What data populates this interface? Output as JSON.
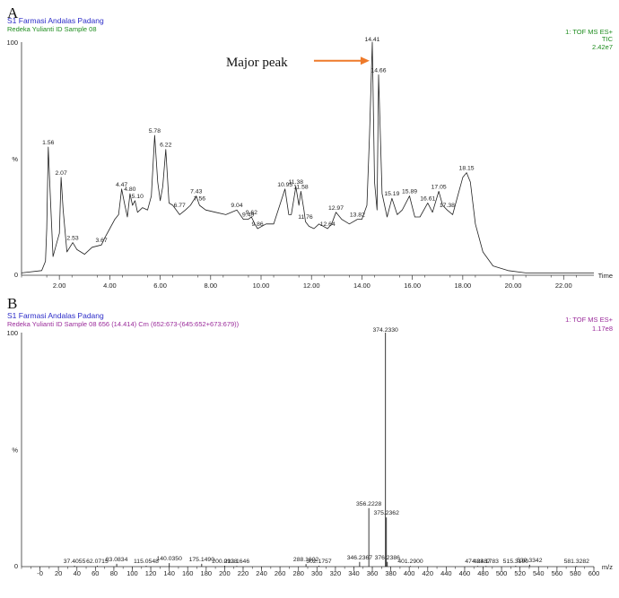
{
  "chart_data": [
    {
      "panel_label": "A",
      "type": "line",
      "header": {
        "line1": "S1 Farmasi Andalas Padang",
        "line2": "Redeka Yulianti ID Sample 08",
        "right1": "1: TOF MS ES+",
        "right2": "TIC",
        "right3": "2.42e7"
      },
      "y_axis": {
        "top_label": "100",
        "mid_label": "%",
        "bottom_label": "0",
        "ylim": [
          0,
          100
        ]
      },
      "x_axis": {
        "label": "Time",
        "xlim": [
          0.5,
          23.2
        ],
        "ticks": [
          "2.00",
          "4.00",
          "6.00",
          "8.00",
          "10.00",
          "12.00",
          "14.00",
          "16.00",
          "18.00",
          "20.00",
          "22.00"
        ]
      },
      "annotation": "Major peak",
      "colors": {
        "header1": "#2c2cc8",
        "header2": "#1e8c1e",
        "right": "#1e8c1e",
        "arrow": "#ee7a2a",
        "trace": "#222222"
      },
      "series": [
        {
          "x": [
            0.5,
            1.3,
            1.45,
            1.5,
            1.56,
            1.65,
            1.75,
            1.85,
            2.0,
            2.07,
            2.15,
            2.3,
            2.53,
            2.7,
            3.0,
            3.3,
            3.67,
            3.8,
            4.0,
            4.2,
            4.35,
            4.47,
            4.6,
            4.7,
            4.8,
            4.9,
            5.0,
            5.1,
            5.3,
            5.5,
            5.65,
            5.78,
            5.9,
            6.0,
            6.1,
            6.22,
            6.35,
            6.5,
            6.77,
            7.0,
            7.2,
            7.43,
            7.56,
            7.8,
            8.2,
            8.6,
            9.04,
            9.3,
            9.49,
            9.62,
            9.75,
            9.86,
            10.2,
            10.5,
            10.95,
            11.1,
            11.2,
            11.38,
            11.5,
            11.58,
            11.7,
            11.76,
            11.9,
            12.1,
            12.3,
            12.64,
            12.8,
            12.97,
            13.2,
            13.5,
            13.82,
            14.0,
            14.2,
            14.3,
            14.41,
            14.5,
            14.6,
            14.66,
            14.8,
            15.0,
            15.19,
            15.4,
            15.6,
            15.89,
            16.1,
            16.3,
            16.61,
            16.8,
            17.05,
            17.2,
            17.38,
            17.6,
            17.8,
            18.0,
            18.15,
            18.3,
            18.5,
            18.8,
            19.2,
            19.8,
            20.5,
            21.5,
            22.5,
            23.2
          ],
          "y": [
            1,
            2,
            6,
            20,
            55,
            32,
            8,
            12,
            18,
            42,
            28,
            10,
            14,
            11,
            9,
            12,
            13,
            16,
            20,
            24,
            26,
            37,
            30,
            25,
            35,
            30,
            32,
            27,
            29,
            28,
            34,
            60,
            40,
            32,
            38,
            54,
            31,
            30,
            26,
            28,
            30,
            34,
            30,
            28,
            27,
            26,
            28,
            24,
            24,
            25,
            22,
            20,
            22,
            22,
            37,
            26,
            26,
            38,
            30,
            36,
            28,
            23,
            21,
            20,
            22,
            20,
            22,
            27,
            24,
            22,
            24,
            24,
            30,
            60,
            100,
            40,
            28,
            86,
            35,
            25,
            33,
            26,
            28,
            34,
            25,
            25,
            31,
            27,
            36,
            30,
            28,
            26,
            34,
            42,
            44,
            40,
            22,
            10,
            4,
            2,
            1,
            1,
            1,
            1
          ]
        }
      ],
      "peak_labels": [
        {
          "x": 1.56,
          "y": 55,
          "label": "1.56"
        },
        {
          "x": 2.07,
          "y": 42,
          "label": "2.07"
        },
        {
          "x": 2.53,
          "y": 14,
          "label": "2.53"
        },
        {
          "x": 3.67,
          "y": 13,
          "label": "3.67"
        },
        {
          "x": 4.47,
          "y": 37,
          "label": "4.47"
        },
        {
          "x": 4.8,
          "y": 35,
          "label": "4.80"
        },
        {
          "x": 5.1,
          "y": 32,
          "label": "5.10"
        },
        {
          "x": 5.78,
          "y": 60,
          "label": "5.78"
        },
        {
          "x": 6.22,
          "y": 54,
          "label": "6.22"
        },
        {
          "x": 6.77,
          "y": 28,
          "label": "6.77"
        },
        {
          "x": 7.43,
          "y": 34,
          "label": "7.43"
        },
        {
          "x": 7.56,
          "y": 31,
          "label": "7.56"
        },
        {
          "x": 9.04,
          "y": 28,
          "label": "9.04"
        },
        {
          "x": 9.49,
          "y": 24,
          "label": "9.49"
        },
        {
          "x": 9.62,
          "y": 25,
          "label": "9.62"
        },
        {
          "x": 9.86,
          "y": 20,
          "label": "9.86"
        },
        {
          "x": 10.95,
          "y": 37,
          "label": "10.95"
        },
        {
          "x": 11.38,
          "y": 38,
          "label": "11.38"
        },
        {
          "x": 11.58,
          "y": 36,
          "label": "11.58"
        },
        {
          "x": 11.76,
          "y": 23,
          "label": "11.76"
        },
        {
          "x": 12.64,
          "y": 20,
          "label": "12.64"
        },
        {
          "x": 12.97,
          "y": 27,
          "label": "12.97"
        },
        {
          "x": 13.82,
          "y": 24,
          "label": "13.82"
        },
        {
          "x": 14.41,
          "y": 100,
          "label": "14.41"
        },
        {
          "x": 14.66,
          "y": 86,
          "label": "14.66"
        },
        {
          "x": 15.19,
          "y": 33,
          "label": "15.19"
        },
        {
          "x": 15.89,
          "y": 34,
          "label": "15.89"
        },
        {
          "x": 16.61,
          "y": 31,
          "label": "16.61"
        },
        {
          "x": 17.05,
          "y": 36,
          "label": "17.05"
        },
        {
          "x": 17.38,
          "y": 28,
          "label": "17.38"
        },
        {
          "x": 18.15,
          "y": 44,
          "label": "18.15"
        }
      ]
    },
    {
      "panel_label": "B",
      "type": "bar",
      "header": {
        "line1": "S1 Farmasi Andalas Padang",
        "line2": "Redeka Yulianti ID Sample 08 656 (14.414) Cm (652:673-(645:652+673:679))",
        "right1": "1: TOF MS ES+",
        "right2": "1.17e8"
      },
      "y_axis": {
        "top_label": "100",
        "mid_label": "%",
        "bottom_label": "0",
        "ylim": [
          0,
          100
        ]
      },
      "x_axis": {
        "label": "m/z",
        "xlim": [
          -20,
          600
        ],
        "ticks": [
          "-0",
          "20",
          "40",
          "60",
          "80",
          "100",
          "120",
          "140",
          "160",
          "180",
          "200",
          "220",
          "240",
          "260",
          "280",
          "300",
          "320",
          "340",
          "360",
          "380",
          "400",
          "420",
          "440",
          "460",
          "480",
          "500",
          "520",
          "540",
          "560",
          "580",
          "600"
        ]
      },
      "colors": {
        "header1": "#2c2cc8",
        "header2": "#9a2a9a",
        "right": "#9a2a9a",
        "trace": "#222222"
      },
      "series": [
        {
          "x": [
            37.4055,
            62.0715,
            83.0834,
            115.0548,
            140.035,
            175.149,
            200.0928,
            213.1646,
            288.1602,
            302.1757,
            346.2367,
            356.2228,
            374.233,
            375.2362,
            376.2386,
            401.29,
            474.2487,
            483.1783,
            515.319,
            530.3342,
            581.3282
          ],
          "y": [
            0.4,
            0.4,
            1.2,
            0.4,
            1.5,
            1.2,
            0.4,
            0.3,
            1.1,
            0.4,
            2.0,
            25,
            100,
            21,
            2.0,
            0.3,
            0.3,
            0.3,
            0.4,
            0.8,
            0.3
          ]
        }
      ],
      "peak_labels": [
        {
          "x": 37.4055,
          "y": 0.4,
          "label": "37.4055"
        },
        {
          "x": 62.0715,
          "y": 0.4,
          "label": "62.0715"
        },
        {
          "x": 83.0834,
          "y": 1.2,
          "label": "83.0834"
        },
        {
          "x": 115.0548,
          "y": 0.4,
          "label": "115.0548"
        },
        {
          "x": 140.035,
          "y": 1.5,
          "label": "140.0350"
        },
        {
          "x": 175.149,
          "y": 1.2,
          "label": "175.1490"
        },
        {
          "x": 200.0928,
          "y": 0.4,
          "label": "200.0928"
        },
        {
          "x": 213.1646,
          "y": 0.3,
          "label": "213.1646"
        },
        {
          "x": 288.1602,
          "y": 1.1,
          "label": "288.1602"
        },
        {
          "x": 302.1757,
          "y": 0.4,
          "label": "302.1757"
        },
        {
          "x": 346.2367,
          "y": 2.0,
          "label": "346.2367"
        },
        {
          "x": 356.2228,
          "y": 25,
          "label": "356.2228"
        },
        {
          "x": 374.233,
          "y": 100,
          "label": "374.2330"
        },
        {
          "x": 375.2362,
          "y": 21,
          "label": "375.2362"
        },
        {
          "x": 376.2386,
          "y": 2.0,
          "label": "376.2386"
        },
        {
          "x": 401.29,
          "y": 0.3,
          "label": "401.2900"
        },
        {
          "x": 474.2487,
          "y": 0.3,
          "label": "474.2487"
        },
        {
          "x": 483.1783,
          "y": 0.3,
          "label": "483.1783"
        },
        {
          "x": 515.319,
          "y": 0.4,
          "label": "515.3190"
        },
        {
          "x": 530.3342,
          "y": 0.8,
          "label": "530.3342"
        },
        {
          "x": 581.3282,
          "y": 0.3,
          "label": "581.3282"
        }
      ]
    }
  ]
}
